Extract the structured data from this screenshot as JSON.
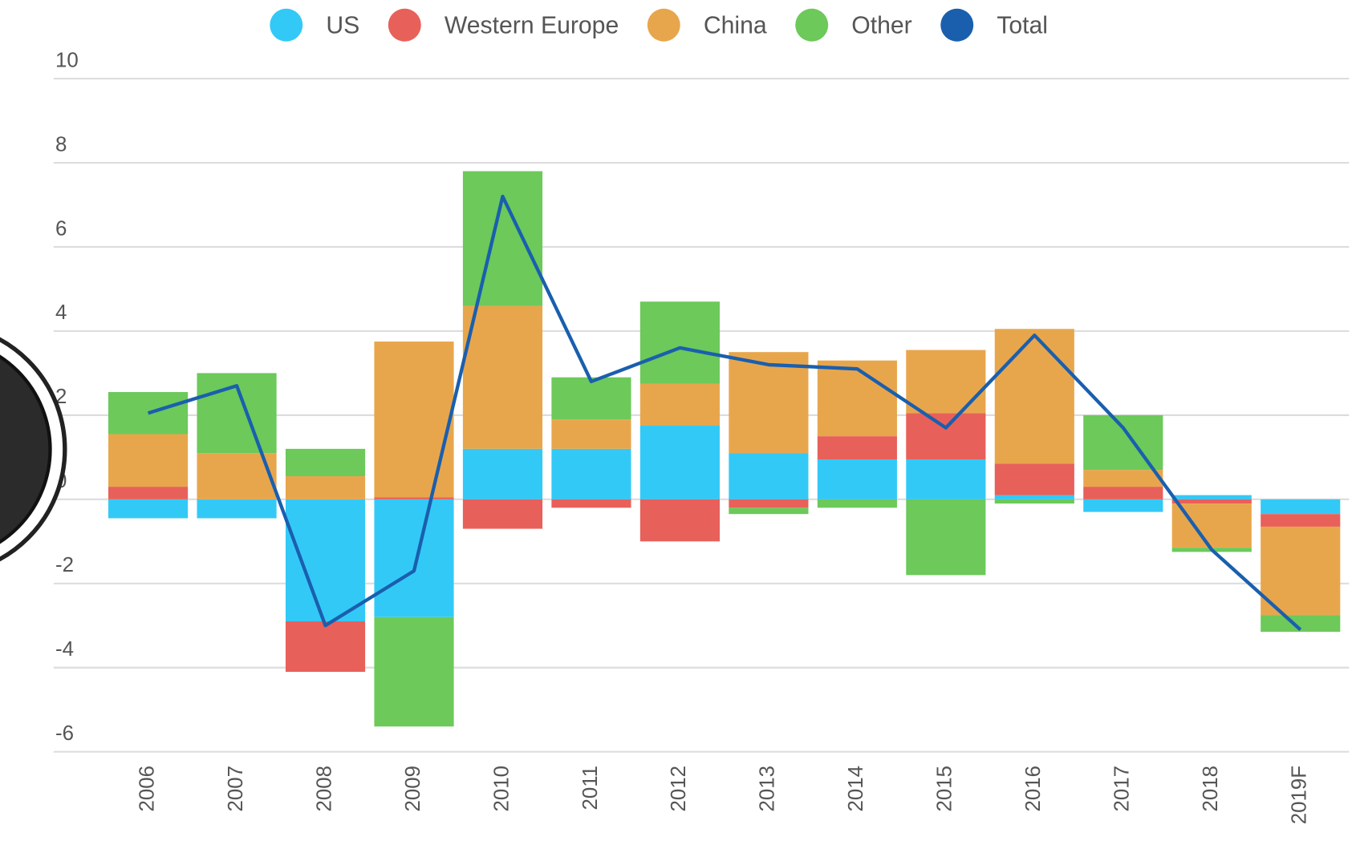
{
  "chart_data": {
    "type": "bar",
    "stacked": true,
    "categories": [
      "2006",
      "2007",
      "2008",
      "2009",
      "2010",
      "2011",
      "2012",
      "2013",
      "2014",
      "2015",
      "2016",
      "2017",
      "2018",
      "2019F"
    ],
    "series": [
      {
        "name": "US",
        "color": "#33c9f7",
        "values": [
          -0.45,
          -0.45,
          -2.9,
          -2.8,
          1.2,
          1.2,
          1.75,
          1.1,
          0.95,
          0.95,
          0.1,
          -0.3,
          0.1,
          -0.35
        ]
      },
      {
        "name": "Western Europe",
        "color": "#e8605a",
        "values": [
          0.3,
          0,
          -1.2,
          0.05,
          -0.7,
          -0.2,
          -1.0,
          -0.2,
          0.55,
          1.1,
          0.75,
          0.3,
          -0.1,
          -0.3
        ]
      },
      {
        "name": "China",
        "color": "#e8a64c",
        "values": [
          1.25,
          1.1,
          0.55,
          3.7,
          3.4,
          0.7,
          1.0,
          2.4,
          1.8,
          1.5,
          3.2,
          0.4,
          -1.05,
          -2.1
        ]
      },
      {
        "name": "Other",
        "color": "#6cc95a",
        "values": [
          1.0,
          1.9,
          0.65,
          -2.6,
          3.2,
          1.0,
          1.95,
          -0.15,
          -0.2,
          -1.8,
          -0.1,
          1.3,
          -0.1,
          -0.4
        ]
      },
      {
        "name": "Total",
        "color": "#1a5fae",
        "type": "line",
        "values": [
          2.05,
          2.7,
          -3.0,
          -1.7,
          7.2,
          2.8,
          3.6,
          3.2,
          3.1,
          1.7,
          3.9,
          1.7,
          -1.2,
          -3.1
        ]
      }
    ],
    "ylim": [
      -6,
      10
    ],
    "yticks": [
      -6,
      -4,
      -2,
      0,
      2,
      4,
      6,
      8,
      10
    ],
    "grid": true,
    "legend": "top"
  }
}
